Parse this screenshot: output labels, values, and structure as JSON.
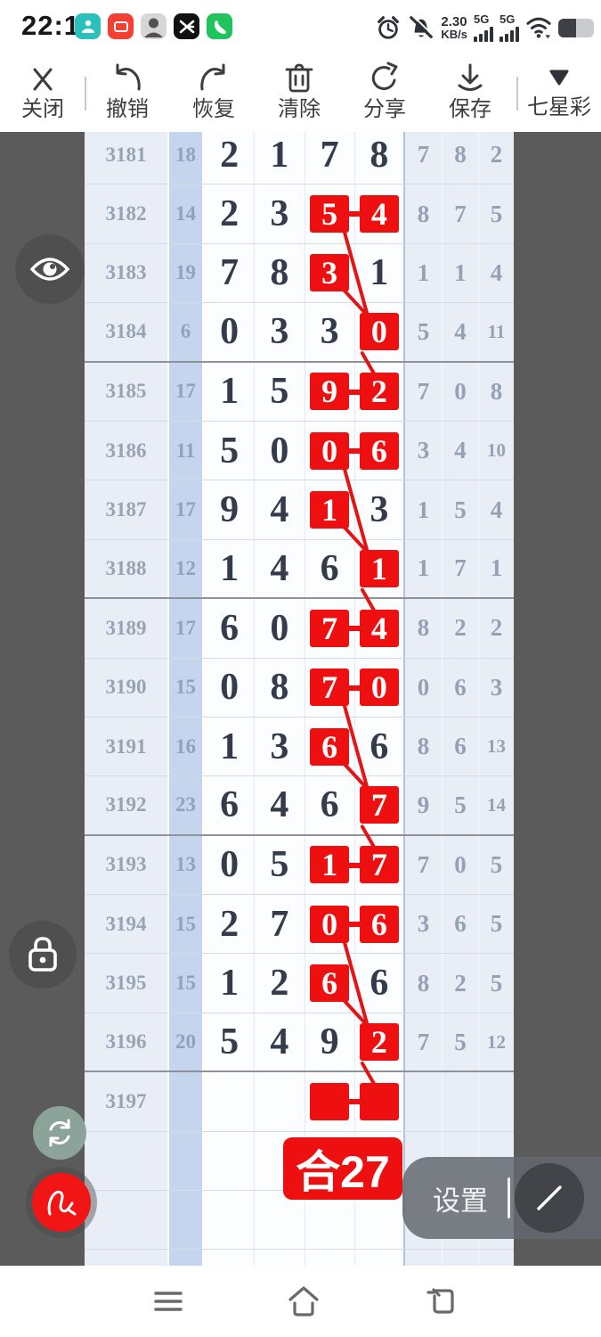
{
  "status_bar": {
    "time": "22:18",
    "speed_value": "2.30",
    "speed_unit": "KB/s",
    "sim1": "5G",
    "sim2": "5G",
    "battery_fill_percent": 50,
    "app_icons": [
      {
        "name": "messenger-teal-app-icon",
        "color": "#2cc0bd"
      },
      {
        "name": "xiaohongshu-app-icon",
        "color": "#f43f32"
      },
      {
        "name": "avatar-app-icon",
        "color": "#d6d6d6"
      },
      {
        "name": "capcut-app-icon",
        "color": "#111111"
      },
      {
        "name": "phone-call-app-icon",
        "color": "#1fc45f"
      }
    ]
  },
  "toolbar": {
    "close": "关闭",
    "undo": "撤销",
    "redo": "恢复",
    "clear": "清除",
    "share": "分享",
    "save": "保存",
    "lottery_selector": "七星彩"
  },
  "table": {
    "rows": [
      {
        "issue": "3181",
        "sum": "18",
        "digits": [
          "2",
          "1",
          "7",
          "8"
        ],
        "boxed": [],
        "pair": false,
        "tail": [
          "7",
          "8",
          "2"
        ]
      },
      {
        "issue": "3182",
        "sum": "14",
        "digits": [
          "2",
          "3",
          "5",
          "4"
        ],
        "boxed": [
          2,
          3
        ],
        "pair": true,
        "tail": [
          "8",
          "7",
          "5"
        ]
      },
      {
        "issue": "3183",
        "sum": "19",
        "digits": [
          "7",
          "8",
          "3",
          "1"
        ],
        "boxed": [
          2
        ],
        "pair": false,
        "tail": [
          "1",
          "1",
          "4"
        ]
      },
      {
        "issue": "3184",
        "sum": "6",
        "digits": [
          "0",
          "3",
          "3",
          "0"
        ],
        "boxed": [
          3
        ],
        "pair": false,
        "tail": [
          "5",
          "4",
          "11"
        ]
      },
      {
        "issue": "3185",
        "sum": "17",
        "digits": [
          "1",
          "5",
          "9",
          "2"
        ],
        "boxed": [
          2,
          3
        ],
        "pair": true,
        "tail": [
          "7",
          "0",
          "8"
        ]
      },
      {
        "issue": "3186",
        "sum": "11",
        "digits": [
          "5",
          "0",
          "0",
          "6"
        ],
        "boxed": [
          2,
          3
        ],
        "pair": true,
        "tail": [
          "3",
          "4",
          "10"
        ]
      },
      {
        "issue": "3187",
        "sum": "17",
        "digits": [
          "9",
          "4",
          "1",
          "3"
        ],
        "boxed": [
          2
        ],
        "pair": false,
        "tail": [
          "1",
          "5",
          "4"
        ]
      },
      {
        "issue": "3188",
        "sum": "12",
        "digits": [
          "1",
          "4",
          "6",
          "1"
        ],
        "boxed": [
          3
        ],
        "pair": false,
        "tail": [
          "1",
          "7",
          "1"
        ]
      },
      {
        "issue": "3189",
        "sum": "17",
        "digits": [
          "6",
          "0",
          "7",
          "4"
        ],
        "boxed": [
          2,
          3
        ],
        "pair": true,
        "tail": [
          "8",
          "2",
          "2"
        ]
      },
      {
        "issue": "3190",
        "sum": "15",
        "digits": [
          "0",
          "8",
          "7",
          "0"
        ],
        "boxed": [
          2,
          3
        ],
        "pair": true,
        "tail": [
          "0",
          "6",
          "3"
        ]
      },
      {
        "issue": "3191",
        "sum": "16",
        "digits": [
          "1",
          "3",
          "6",
          "6"
        ],
        "boxed": [
          2
        ],
        "pair": false,
        "tail": [
          "8",
          "6",
          "13"
        ]
      },
      {
        "issue": "3192",
        "sum": "23",
        "digits": [
          "6",
          "4",
          "6",
          "7"
        ],
        "boxed": [
          3
        ],
        "pair": false,
        "tail": [
          "9",
          "5",
          "14"
        ]
      },
      {
        "issue": "3193",
        "sum": "13",
        "digits": [
          "0",
          "5",
          "1",
          "7"
        ],
        "boxed": [
          2,
          3
        ],
        "pair": true,
        "tail": [
          "7",
          "0",
          "5"
        ]
      },
      {
        "issue": "3194",
        "sum": "15",
        "digits": [
          "2",
          "7",
          "0",
          "6"
        ],
        "boxed": [
          2,
          3
        ],
        "pair": true,
        "tail": [
          "3",
          "6",
          "5"
        ]
      },
      {
        "issue": "3195",
        "sum": "15",
        "digits": [
          "1",
          "2",
          "6",
          "6"
        ],
        "boxed": [
          2
        ],
        "pair": false,
        "tail": [
          "8",
          "2",
          "5"
        ]
      },
      {
        "issue": "3196",
        "sum": "20",
        "digits": [
          "5",
          "4",
          "9",
          "2"
        ],
        "boxed": [
          3
        ],
        "pair": false,
        "tail": [
          "7",
          "5",
          "12"
        ]
      },
      {
        "issue": "3197",
        "sum": "",
        "digits": [
          "",
          "",
          "",
          ""
        ],
        "boxed": [
          2,
          3
        ],
        "pair": true,
        "tail": [
          "",
          "",
          ""
        ]
      },
      {
        "issue": "",
        "sum": "",
        "digits": [
          "",
          "",
          "",
          ""
        ],
        "boxed": [],
        "pair": false,
        "tail": [
          "",
          "",
          ""
        ]
      },
      {
        "issue": "",
        "sum": "",
        "digits": [
          "",
          "",
          "",
          ""
        ],
        "boxed": [],
        "pair": false,
        "tail": [
          "",
          "",
          ""
        ]
      },
      {
        "issue": "",
        "sum": "",
        "digits": [
          "",
          "",
          "",
          ""
        ],
        "boxed": [],
        "pair": false,
        "tail": [
          "",
          "",
          ""
        ]
      }
    ],
    "group_last_rows": [
      3,
      7,
      11,
      15
    ],
    "links": [
      {
        "from": [
          1,
          2
        ],
        "to": [
          3,
          3
        ]
      },
      {
        "from": [
          2,
          2
        ],
        "to": [
          3,
          3
        ]
      },
      {
        "from": [
          3,
          3
        ],
        "to": [
          4,
          3
        ]
      },
      {
        "from": [
          5,
          2
        ],
        "to": [
          7,
          3
        ]
      },
      {
        "from": [
          6,
          2
        ],
        "to": [
          7,
          3
        ]
      },
      {
        "from": [
          7,
          3
        ],
        "to": [
          8,
          3
        ]
      },
      {
        "from": [
          9,
          2
        ],
        "to": [
          11,
          3
        ]
      },
      {
        "from": [
          10,
          2
        ],
        "to": [
          11,
          3
        ]
      },
      {
        "from": [
          11,
          3
        ],
        "to": [
          12,
          3
        ]
      },
      {
        "from": [
          13,
          2
        ],
        "to": [
          15,
          3
        ]
      },
      {
        "from": [
          14,
          2
        ],
        "to": [
          15,
          3
        ]
      },
      {
        "from": [
          15,
          3
        ],
        "to": [
          16,
          3
        ]
      }
    ]
  },
  "annotation": {
    "sum_badge": "合27"
  },
  "floating": {
    "settings_label": "设置"
  },
  "colors": {
    "accent_red": "#ee1010",
    "link_line_red": "#e41414",
    "main_digit": "#343c4c",
    "muted_digit": "#96a1b4",
    "sum_col_bg": "#c5d5ee",
    "light_col_bg": "#e9eef6",
    "side_bg": "#5b5b5b"
  }
}
